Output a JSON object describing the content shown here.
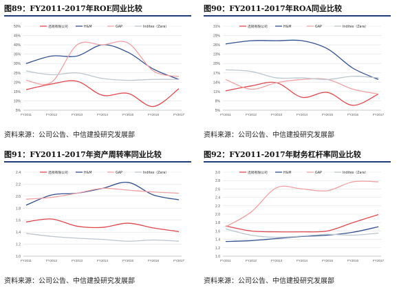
{
  "figures": [
    {
      "title": "图89：FY2011-2017年ROE同业比较",
      "source": "资料来源：公司公告、中信建投研究发展部"
    },
    {
      "title": "图90：FY2011-2017年ROA同业比较",
      "source": "资料来源：公司公告、中信建投研究发展部"
    },
    {
      "title": "图91：FY2011-2017年资产周转率同业比较",
      "source": "资料来源：公司公告、中信建投研究发展部"
    },
    {
      "title": "图92：FY2011-2017年财务杠杆率同业比较",
      "source": "资料来源：公司公告、中信建投研究发展部"
    }
  ],
  "chart_data": [
    {
      "type": "line",
      "categories": [
        "FY2011",
        "FY2012",
        "FY2013",
        "FY2014",
        "FY2015",
        "FY2016",
        "FY2017"
      ],
      "yticks": [
        "5%",
        "10%",
        "15%",
        "20%",
        "25%",
        "30%",
        "35%",
        "40%",
        "45%",
        "50%"
      ],
      "ylim": [
        5,
        50
      ],
      "legend_position": "top",
      "grid": true,
      "series": [
        {
          "name": "迅销有限公司",
          "color": "#e0474c",
          "values": [
            16,
            19,
            20.5,
            13,
            14,
            7,
            16.5
          ]
        },
        {
          "name": "H&M",
          "color": "#2f4f8f",
          "values": [
            30,
            34,
            34,
            40,
            36,
            27,
            21.5
          ]
        },
        {
          "name": "GAP",
          "color": "#f0a0a2",
          "values": [
            21,
            20,
            40,
            40,
            41,
            26,
            23
          ]
        },
        {
          "name": "Inditex（Zara）",
          "color": "#b9c6cf",
          "values": [
            26,
            24,
            25,
            22,
            21,
            21.5,
            21.5
          ]
        }
      ]
    },
    {
      "type": "line",
      "categories": [
        "FY2011",
        "FY2012",
        "FY2013",
        "FY2014",
        "FY2015",
        "FY2016",
        "FY2017"
      ],
      "yticks": [
        "5%",
        "8%",
        "11%",
        "14%",
        "17%",
        "20%",
        "23%",
        "26%",
        "29%",
        "31%"
      ],
      "ylim": [
        5,
        31
      ],
      "legend_position": "top",
      "grid": true,
      "series": [
        {
          "name": "迅销有限公司",
          "color": "#e0474c",
          "values": [
            11,
            12.5,
            13.5,
            9,
            10.5,
            6.5,
            10
          ]
        },
        {
          "name": "H&M",
          "color": "#2f4f8f",
          "values": [
            25.5,
            26.5,
            26.5,
            26.5,
            24,
            18,
            14.5
          ]
        },
        {
          "name": "GAP",
          "color": "#f0a0a2",
          "values": [
            14.5,
            11.5,
            13.5,
            14.5,
            14.5,
            11.5,
            10
          ]
        },
        {
          "name": "Inditex（Zara）",
          "color": "#b9c6cf",
          "values": [
            17.5,
            17,
            15,
            15,
            14.5,
            15.5,
            15
          ]
        }
      ]
    },
    {
      "type": "line",
      "categories": [
        "FY2011",
        "FY2012",
        "FY2013",
        "FY2014",
        "FY2015",
        "FY2016",
        "FY2017"
      ],
      "yticks": [
        "1.0",
        "1.2",
        "1.4",
        "1.6",
        "1.8",
        "2.0",
        "2.2",
        "2.4"
      ],
      "ylim": [
        1.0,
        2.4
      ],
      "legend_position": "top",
      "grid": true,
      "series": [
        {
          "name": "迅销有限公司",
          "color": "#e0474c",
          "values": [
            1.57,
            1.62,
            1.5,
            1.48,
            1.55,
            1.47,
            1.41
          ]
        },
        {
          "name": "H&M",
          "color": "#2f4f8f",
          "values": [
            1.85,
            2.02,
            2.05,
            2.13,
            2.23,
            2.02,
            1.94
          ]
        },
        {
          "name": "GAP",
          "color": "#f0a0a2",
          "values": [
            1.95,
            1.98,
            2.05,
            2.13,
            2.1,
            2.07,
            2.05
          ]
        },
        {
          "name": "Inditex（Zara）",
          "color": "#b9c6cf",
          "values": [
            1.38,
            1.33,
            1.3,
            1.28,
            1.25,
            1.27,
            1.25
          ]
        }
      ]
    },
    {
      "type": "line",
      "categories": [
        "FY2011",
        "FY2012",
        "FY2013",
        "FY2014",
        "FY2015",
        "FY2016",
        "FY2017"
      ],
      "yticks": [
        "1.0",
        "1.2",
        "1.4",
        "1.6",
        "1.8",
        "2.0",
        "2.2",
        "2.4",
        "2.6",
        "2.8",
        "3.0"
      ],
      "ylim": [
        1.0,
        3.0
      ],
      "legend_position": "top",
      "grid": true,
      "series": [
        {
          "name": "迅销有限公司",
          "color": "#e0474c",
          "values": [
            1.72,
            1.6,
            1.58,
            1.58,
            1.6,
            1.8,
            1.99
          ]
        },
        {
          "name": "H&M",
          "color": "#2f4f8f",
          "values": [
            1.35,
            1.37,
            1.42,
            1.47,
            1.5,
            1.57,
            1.7
          ]
        },
        {
          "name": "GAP",
          "color": "#f0a0a2",
          "values": [
            1.7,
            2.05,
            2.63,
            2.6,
            2.56,
            2.77,
            2.77
          ]
        },
        {
          "name": "Inditex（Zara）",
          "color": "#b9c6cf",
          "values": [
            1.65,
            1.5,
            1.45,
            1.48,
            1.52,
            1.5,
            1.55
          ]
        }
      ]
    }
  ]
}
